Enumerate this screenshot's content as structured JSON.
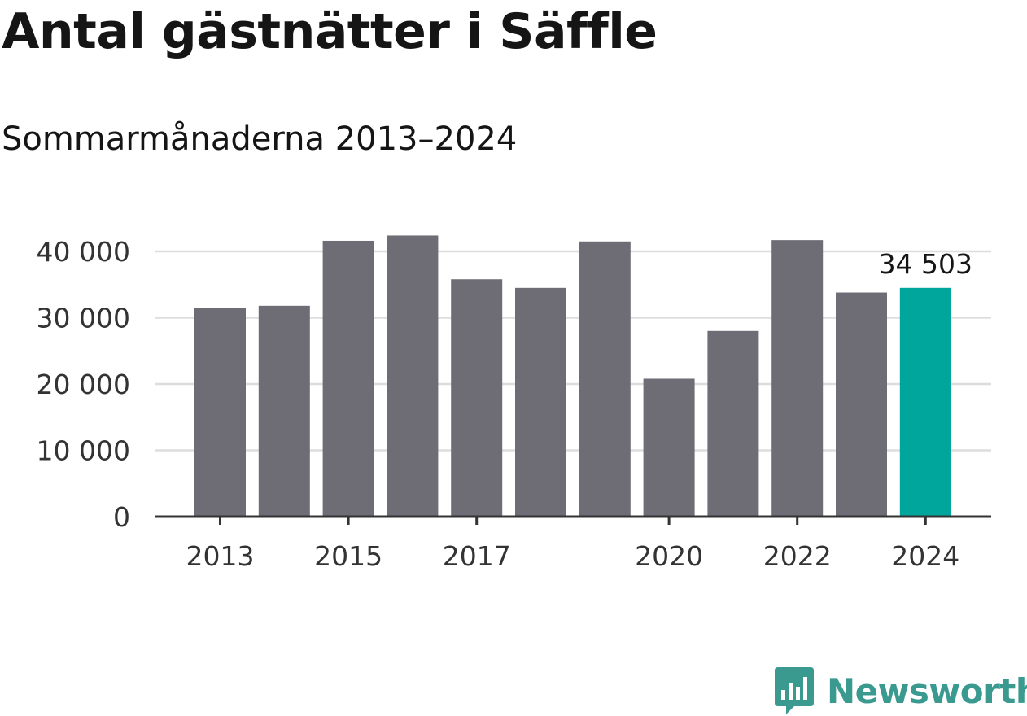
{
  "title": "Antal gästnätter i Säffle",
  "subtitle": "Sommarmånaderna 2013–2024",
  "brand": {
    "name": "Newsworthy",
    "color": "#3a9a8f",
    "icon": "newsworthy-logo-icon"
  },
  "colors": {
    "bar": "#6e6d75",
    "highlight": "#00a69c",
    "grid": "#dddddd",
    "axis": "#333333"
  },
  "chart_data": {
    "type": "bar",
    "title": "Antal gästnätter i Säffle",
    "subtitle": "Sommarmånaderna 2013–2024",
    "xlabel": "",
    "ylabel": "",
    "categories": [
      "2013",
      "2014",
      "2015",
      "2016",
      "2017",
      "2018",
      "2019",
      "2020",
      "2021",
      "2022",
      "2023",
      "2024"
    ],
    "values": [
      31500,
      31800,
      41600,
      42400,
      35800,
      34500,
      41500,
      20800,
      28000,
      41700,
      33800,
      34503
    ],
    "highlight_index": 11,
    "highlight_label": "34 503",
    "x_tick_labels": [
      "2013",
      "2015",
      "2017",
      "2020",
      "2022",
      "2024"
    ],
    "y_ticks": [
      0,
      10000,
      20000,
      30000,
      40000
    ],
    "y_tick_labels": [
      "0",
      "10 000",
      "20 000",
      "30 000",
      "40 000"
    ],
    "ylim": [
      0,
      40000
    ],
    "grid": true,
    "legend": "none"
  }
}
